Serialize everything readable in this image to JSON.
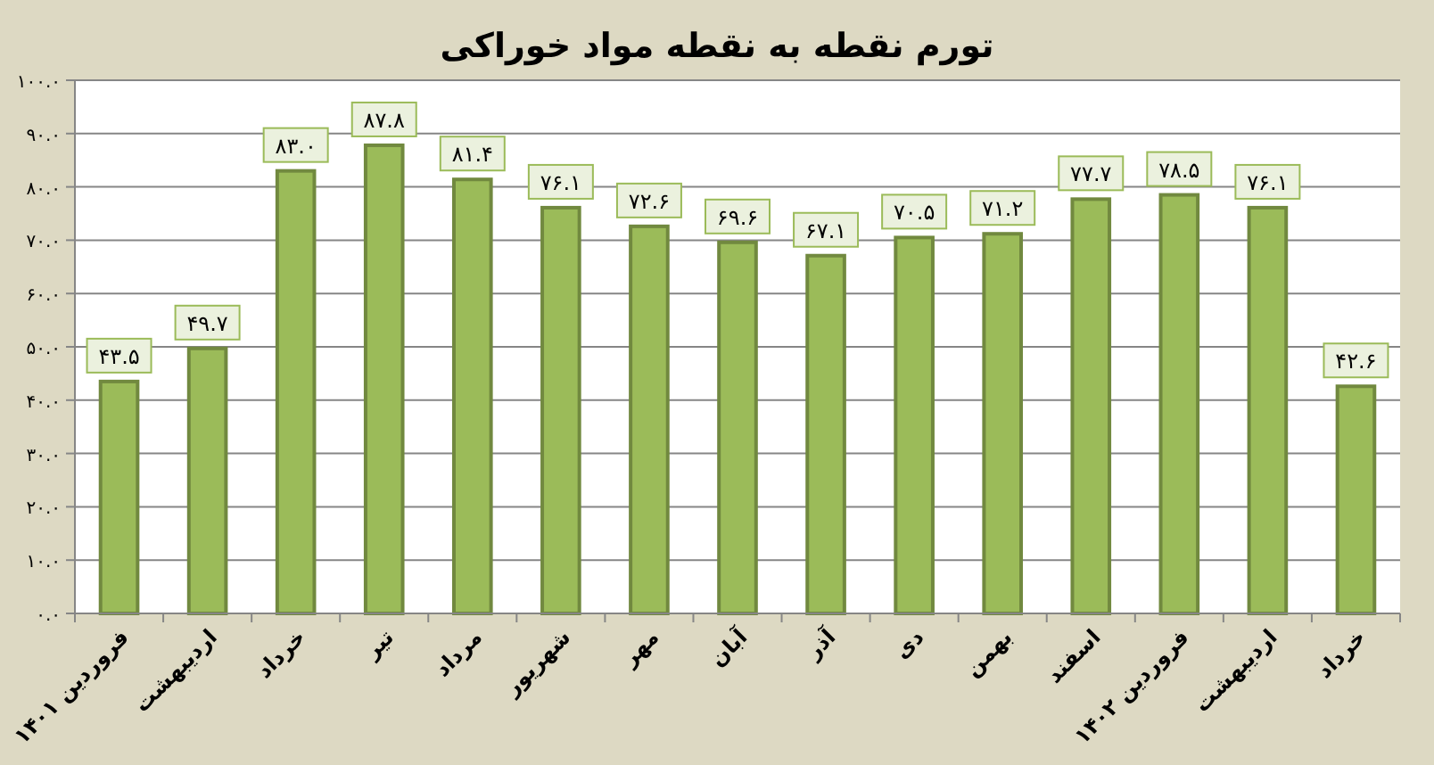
{
  "chart_data": {
    "type": "bar",
    "title": "تورم نقطه به نقطه مواد خوراکی",
    "categories": [
      "فروردین ۱۴۰۱",
      "اردیبهشت",
      "خرداد",
      "تیر",
      "مرداد",
      "شهریور",
      "مهر",
      "آبان",
      "آذر",
      "دی",
      "بهمن",
      "اسفند",
      "فروردین ۱۴۰۲",
      "اردیبهشت",
      "خرداد"
    ],
    "values": [
      43.5,
      49.7,
      83.0,
      87.8,
      81.4,
      76.1,
      72.6,
      69.6,
      67.1,
      70.5,
      71.2,
      77.7,
      78.5,
      76.1,
      42.6
    ],
    "value_labels": [
      "۴۳.۵",
      "۴۹.۷",
      "۸۳.۰",
      "۸۷.۸",
      "۸۱.۴",
      "۷۶.۱",
      "۷۲.۶",
      "۶۹.۶",
      "۶۷.۱",
      "۷۰.۵",
      "۷۱.۲",
      "۷۷.۷",
      "۷۸.۵",
      "۷۶.۱",
      "۴۲.۶"
    ],
    "color": "#9bbb59",
    "ylim": [
      0,
      100
    ],
    "yticks": [
      {
        "value": 0,
        "label": "۰.۰"
      },
      {
        "value": 10,
        "label": "۱۰.۰"
      },
      {
        "value": 20,
        "label": "۲۰.۰"
      },
      {
        "value": 30,
        "label": "۳۰.۰"
      },
      {
        "value": 40,
        "label": "۴۰.۰"
      },
      {
        "value": 50,
        "label": "۵۰.۰"
      },
      {
        "value": 60,
        "label": "۶۰.۰"
      },
      {
        "value": 70,
        "label": "۷۰.۰"
      },
      {
        "value": 80,
        "label": "۸۰.۰"
      },
      {
        "value": 90,
        "label": "۹۰.۰"
      },
      {
        "value": 100,
        "label": "۱۰۰.۰"
      }
    ],
    "grid": "y"
  }
}
